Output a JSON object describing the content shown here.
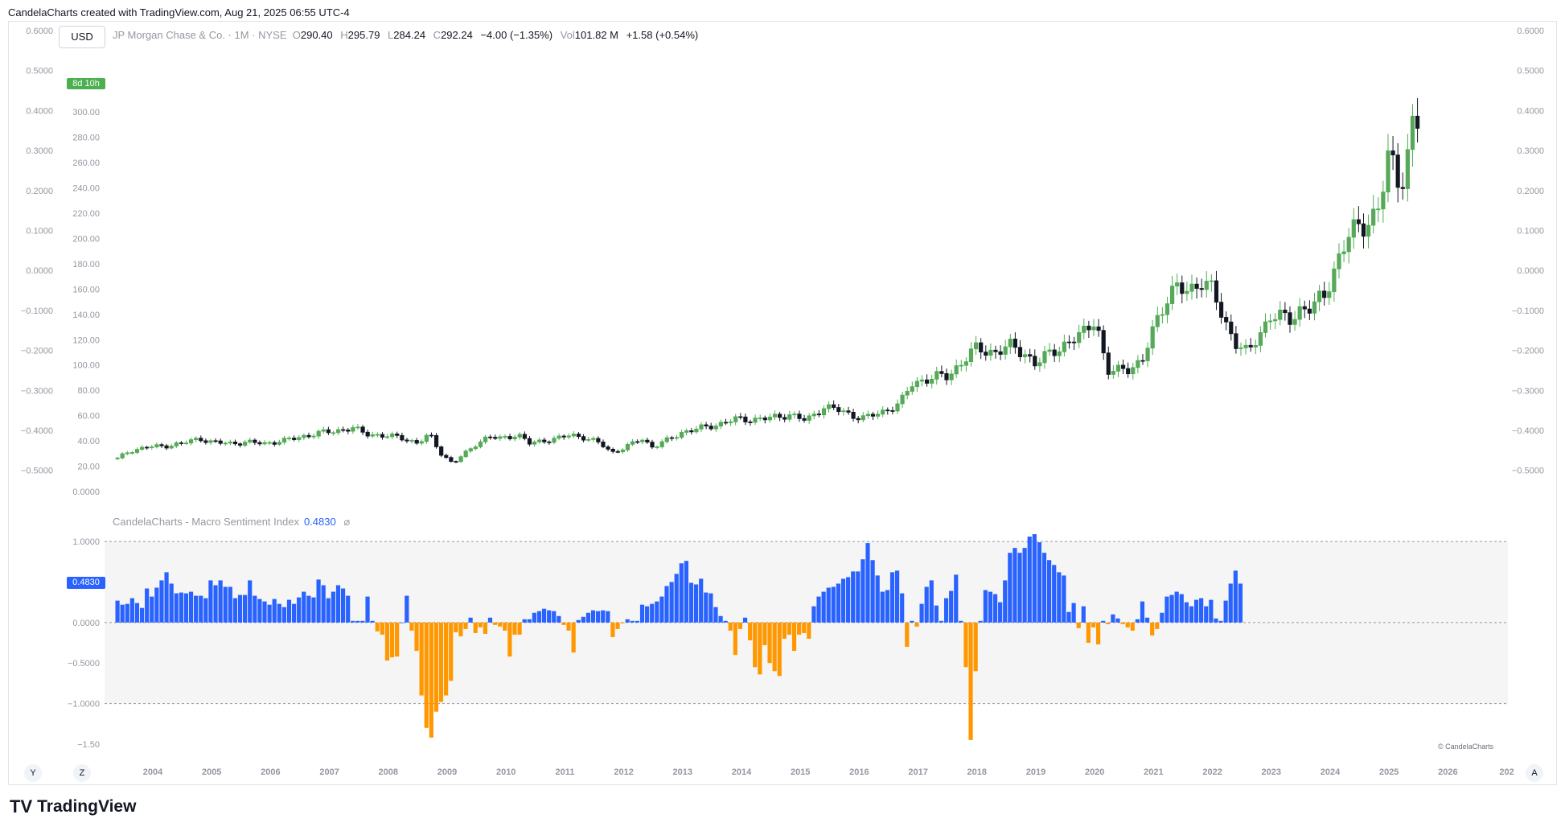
{
  "header": {
    "text": "CandelaCharts created with TradingView.com, Aug 21, 2025 06:55 UTC-4"
  },
  "currency": "USD",
  "legend": {
    "symbol": "JP Morgan Chase & Co. · 1M · NYSE",
    "o_label": "O",
    "o": "290.40",
    "h_label": "H",
    "h": "295.79",
    "l_label": "L",
    "l": "284.24",
    "c_label": "C",
    "c": "292.24",
    "change": "−4.00 (−1.35%)",
    "vol_label": "Vol",
    "vol": "101.82 M",
    "vol_change": "+1.58 (+0.54%)"
  },
  "price_tag": {
    "text": "8d 10h"
  },
  "indicator": {
    "name": "CandelaCharts - Macro Sentiment Index",
    "value": "0.4830",
    "tag": "0.4830",
    "icon": "hidden-eye-icon"
  },
  "copyright": "© CandelaCharts",
  "nav": {
    "left1": "Y",
    "left2": "Z",
    "right": "A"
  },
  "brand": {
    "logo": "TV",
    "name": "TradingView"
  },
  "colors": {
    "up": "#4caf50",
    "down": "#131722",
    "pos": "#2962ff",
    "neg": "#ff9800"
  },
  "chart_data": [
    {
      "type": "candlestick",
      "title": "JP Morgan Chase & Co. · 1M · NYSE",
      "x_ticks": [
        "2004",
        "2005",
        "2006",
        "2007",
        "2008",
        "2009",
        "2010",
        "2011",
        "2012",
        "2013",
        "2014",
        "2015",
        "2016",
        "2017",
        "2018",
        "2019",
        "2020",
        "2021",
        "2022",
        "2023",
        "2024",
        "2025",
        "2026",
        "202"
      ],
      "price_ticks": [
        "300.00",
        "280.00",
        "260.00",
        "240.00",
        "220.00",
        "200.00",
        "180.00",
        "160.00",
        "140.00",
        "120.00",
        "100.00",
        "80.00",
        "60.00",
        "40.00",
        "20.00",
        "0.0000"
      ],
      "left_ticks": [
        "0.6000",
        "0.5000",
        "0.4000",
        "0.3000",
        "0.2000",
        "0.1000",
        "0.0000",
        "−0.1000",
        "−0.2000",
        "−0.3000",
        "−0.4000",
        "−0.5000"
      ],
      "right_ticks": [
        "0.6000",
        "0.5000",
        "0.4000",
        "0.3000",
        "0.2000",
        "0.1000",
        "0.0000",
        "−0.1000",
        "−0.2000",
        "−0.3000",
        "−0.4000",
        "−0.5000"
      ],
      "ylim": [
        0,
        330
      ],
      "close_path": [
        [
          2003.4,
          26
        ],
        [
          2003.6,
          32
        ],
        [
          2003.9,
          35
        ],
        [
          2004.2,
          36
        ],
        [
          2004.5,
          38
        ],
        [
          2004.8,
          42
        ],
        [
          2005.0,
          39
        ],
        [
          2005.3,
          38
        ],
        [
          2005.6,
          39
        ],
        [
          2005.9,
          38
        ],
        [
          2006.2,
          40
        ],
        [
          2006.5,
          43
        ],
        [
          2006.8,
          46
        ],
        [
          2007.1,
          48
        ],
        [
          2007.4,
          50
        ],
        [
          2007.6,
          46
        ],
        [
          2007.9,
          44
        ],
        [
          2008.2,
          43
        ],
        [
          2008.5,
          38
        ],
        [
          2008.7,
          45
        ],
        [
          2008.9,
          30
        ],
        [
          2009.1,
          22
        ],
        [
          2009.3,
          30
        ],
        [
          2009.5,
          38
        ],
        [
          2009.7,
          43
        ],
        [
          2009.9,
          42
        ],
        [
          2010.2,
          45
        ],
        [
          2010.4,
          38
        ],
        [
          2010.6,
          40
        ],
        [
          2010.9,
          42
        ],
        [
          2011.1,
          45
        ],
        [
          2011.3,
          43
        ],
        [
          2011.6,
          38
        ],
        [
          2011.8,
          31
        ],
        [
          2012.0,
          34
        ],
        [
          2012.3,
          42
        ],
        [
          2012.5,
          35
        ],
        [
          2012.8,
          42
        ],
        [
          2013.0,
          47
        ],
        [
          2013.3,
          50
        ],
        [
          2013.6,
          53
        ],
        [
          2013.9,
          57
        ],
        [
          2014.2,
          57
        ],
        [
          2014.5,
          58
        ],
        [
          2014.8,
          61
        ],
        [
          2015.1,
          56
        ],
        [
          2015.4,
          67
        ],
        [
          2015.6,
          65
        ],
        [
          2015.9,
          60
        ],
        [
          2016.1,
          58
        ],
        [
          2016.4,
          63
        ],
        [
          2016.7,
          70
        ],
        [
          2016.9,
          85
        ],
        [
          2017.2,
          90
        ],
        [
          2017.5,
          91
        ],
        [
          2017.8,
          105
        ],
        [
          2018.0,
          113
        ],
        [
          2018.3,
          110
        ],
        [
          2018.6,
          115
        ],
        [
          2018.8,
          110
        ],
        [
          2019.0,
          100
        ],
        [
          2019.3,
          112
        ],
        [
          2019.6,
          118
        ],
        [
          2019.8,
          125
        ],
        [
          2020.0,
          138
        ],
        [
          2020.1,
          120
        ],
        [
          2020.2,
          93
        ],
        [
          2020.5,
          98
        ],
        [
          2020.8,
          100
        ],
        [
          2021.0,
          130
        ],
        [
          2021.2,
          152
        ],
        [
          2021.4,
          160
        ],
        [
          2021.6,
          158
        ],
        [
          2021.8,
          168
        ],
        [
          2022.0,
          158
        ],
        [
          2022.2,
          135
        ],
        [
          2022.4,
          118
        ],
        [
          2022.6,
          108
        ],
        [
          2022.8,
          125
        ],
        [
          2023.0,
          140
        ],
        [
          2023.3,
          135
        ],
        [
          2023.5,
          145
        ],
        [
          2023.7,
          145
        ],
        [
          2023.9,
          155
        ],
        [
          2024.1,
          180
        ],
        [
          2024.3,
          200
        ],
        [
          2024.5,
          210
        ],
        [
          2024.8,
          220
        ],
        [
          2024.9,
          240
        ],
        [
          2025.0,
          265
        ],
        [
          2025.2,
          245
        ],
        [
          2025.3,
          260
        ],
        [
          2025.4,
          290
        ],
        [
          2025.55,
          292
        ]
      ]
    },
    {
      "type": "bar",
      "title": "CandelaCharts - Macro Sentiment Index",
      "y_ticks": [
        "1.0000",
        "0.0000",
        "−0.5000",
        "−1.0000",
        "−1.50"
      ],
      "ylim": [
        -1.55,
        1.1
      ],
      "threshold_lines": [
        1.0,
        0.0,
        -1.0
      ],
      "x_start": 2003.4,
      "x_step": 0.0833,
      "values": [
        0.27,
        0.22,
        0.23,
        0.3,
        0.24,
        0.18,
        0.42,
        0.32,
        0.43,
        0.52,
        0.62,
        0.48,
        0.36,
        0.37,
        0.36,
        0.38,
        0.33,
        0.33,
        0.3,
        0.52,
        0.46,
        0.52,
        0.44,
        0.44,
        0.3,
        0.34,
        0.34,
        0.52,
        0.33,
        0.29,
        0.26,
        0.22,
        0.29,
        0.23,
        0.19,
        0.28,
        0.23,
        0.31,
        0.38,
        0.33,
        0.31,
        0.53,
        0.46,
        0.3,
        0.38,
        0.46,
        0.42,
        0.33,
        0.02,
        0.02,
        0.02,
        0.32,
        0.02,
        -0.11,
        -0.15,
        -0.47,
        -0.43,
        -0.42,
        0.0,
        0.33,
        -0.1,
        -0.35,
        -0.9,
        -1.3,
        -1.42,
        -1.1,
        -0.98,
        -0.9,
        -0.72,
        -0.12,
        -0.17,
        -0.08,
        0.06,
        -0.13,
        -0.06,
        -0.14,
        0.06,
        -0.03,
        -0.05,
        -0.1,
        -0.42,
        -0.15,
        -0.15,
        0.04,
        0.04,
        0.12,
        0.14,
        0.17,
        0.15,
        0.14,
        0.08,
        -0.03,
        -0.1,
        -0.37,
        0.03,
        0.07,
        0.12,
        0.15,
        0.14,
        0.15,
        0.14,
        -0.18,
        -0.08,
        -0.01,
        0.04,
        0.02,
        0.02,
        0.22,
        0.2,
        0.23,
        0.26,
        0.32,
        0.45,
        0.5,
        0.6,
        0.73,
        0.76,
        0.49,
        0.47,
        0.54,
        0.37,
        0.36,
        0.19,
        0.08,
        0.02,
        -0.1,
        -0.4,
        -0.08,
        0.06,
        -0.22,
        -0.55,
        -0.64,
        -0.28,
        -0.5,
        -0.6,
        -0.66,
        -0.2,
        -0.15,
        -0.35,
        -0.15,
        -0.13,
        -0.2,
        0.2,
        0.32,
        0.38,
        0.43,
        0.44,
        0.48,
        0.54,
        0.56,
        0.63,
        0.63,
        0.78,
        0.98,
        0.77,
        0.58,
        0.38,
        0.4,
        0.62,
        0.64,
        0.36,
        -0.3,
        0.02,
        -0.05,
        0.23,
        0.44,
        0.52,
        0.21,
        0.02,
        0.3,
        0.39,
        0.59,
        0.02,
        -0.55,
        -1.45,
        -0.6,
        0.02,
        0.4,
        0.38,
        0.35,
        0.25,
        0.52,
        0.86,
        0.92,
        0.86,
        0.92,
        1.06,
        1.09,
        0.99,
        0.86,
        0.77,
        0.71,
        0.62,
        0.58,
        0.13,
        0.24,
        -0.07,
        0.2,
        -0.25,
        -0.06,
        -0.27,
        0.02,
        -0.02,
        0.1,
        0.05,
        -0.02,
        -0.06,
        -0.1,
        0.04,
        0.26,
        0.06,
        -0.16,
        -0.08,
        0.12,
        0.32,
        0.34,
        0.38,
        0.35,
        0.25,
        0.2,
        0.28,
        0.3,
        0.2,
        0.28,
        0.05,
        0.02,
        0.27,
        0.48,
        0.64,
        0.48
      ]
    }
  ]
}
